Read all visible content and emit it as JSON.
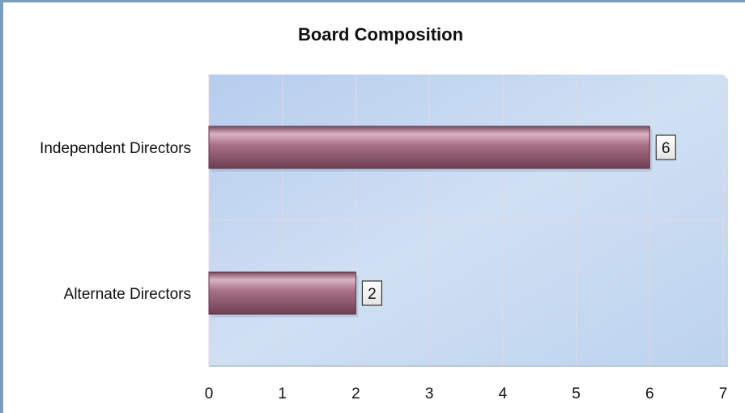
{
  "chart_data": {
    "type": "bar",
    "orientation": "horizontal",
    "title": "Board Composition",
    "categories": [
      "Independent Directors",
      "Alternate Directors"
    ],
    "values": [
      6,
      2
    ],
    "data_labels": [
      "6",
      "2"
    ],
    "xlim": [
      0,
      7
    ],
    "x_ticks": [
      "0",
      "1",
      "2",
      "3",
      "4",
      "5",
      "6",
      "7"
    ],
    "xlabel": "",
    "ylabel": "",
    "grid": true,
    "legend": "none",
    "colors": {
      "bar": "#8f5a6e",
      "bar_highlight": "#d6b0bf",
      "plot_bg": "#c5d8f0",
      "gridline": "#e8d6e2",
      "frame_border": "#7b9dbd"
    }
  }
}
